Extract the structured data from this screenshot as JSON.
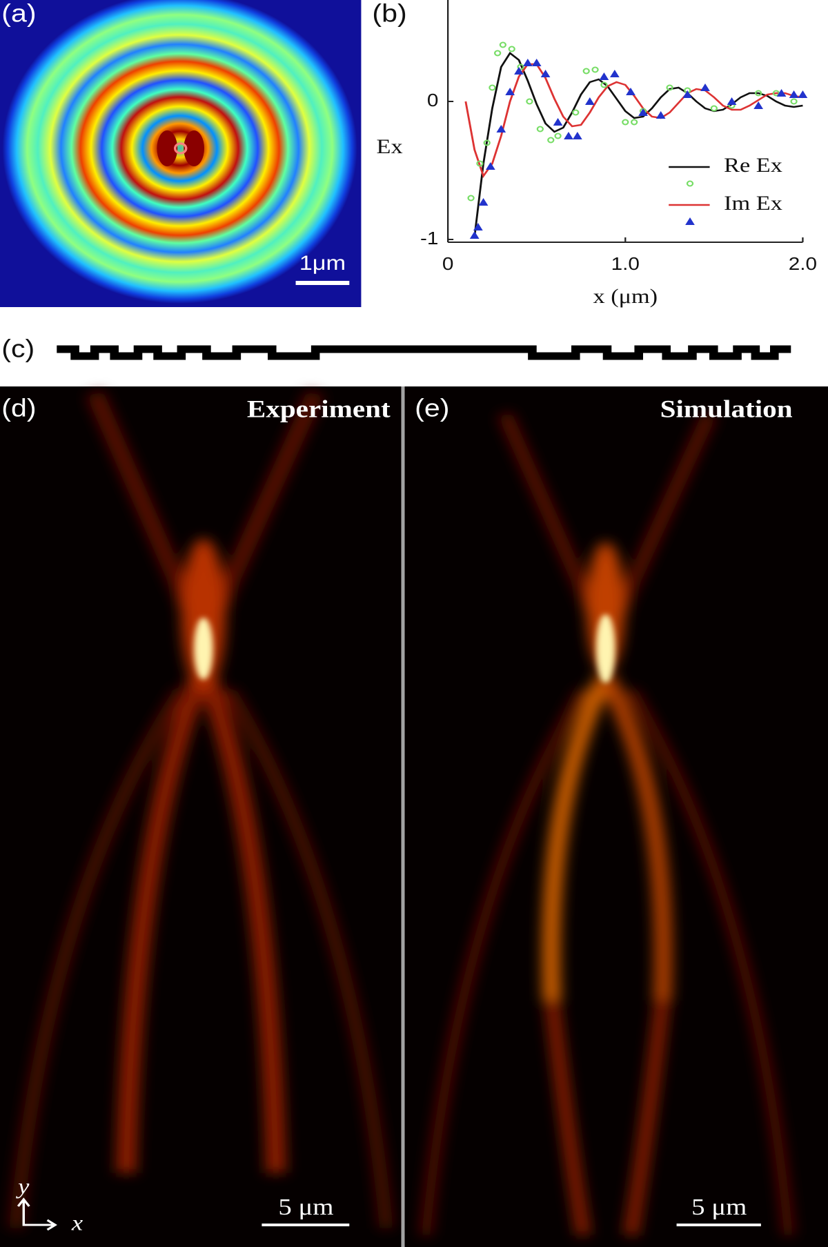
{
  "panels": {
    "a": {
      "label": "(a)",
      "scale_bar": "1μm"
    },
    "b": {
      "label": "(b)"
    },
    "c": {
      "label": "(c)"
    },
    "d": {
      "label": "(d)",
      "title": "Experiment",
      "scale_bar": "5 μm",
      "axis_y": "y",
      "axis_x": "x"
    },
    "e": {
      "label": "(e)",
      "title": "Simulation",
      "scale_bar": "5 μm"
    }
  },
  "chart_data": {
    "type": "line",
    "x_label": "x (μm)",
    "y_label": "Ex",
    "xlim": [
      0,
      2
    ],
    "ylim": [
      -1.02,
      0.735
    ],
    "xticks": [
      0,
      {
        "value": 1,
        "label": "1.0"
      },
      {
        "value": 2,
        "label": "2.0"
      }
    ],
    "yticks": [
      -1,
      0
    ],
    "legend": "right",
    "series": [
      {
        "name": "Re Ex",
        "mode": "line",
        "color": "#111111",
        "x": [
          0.15,
          0.2,
          0.25,
          0.3,
          0.35,
          0.4,
          0.45,
          0.5,
          0.55,
          0.6,
          0.65,
          0.7,
          0.75,
          0.8,
          0.85,
          0.9,
          0.95,
          1.0,
          1.05,
          1.1,
          1.15,
          1.2,
          1.25,
          1.3,
          1.35,
          1.4,
          1.45,
          1.5,
          1.55,
          1.6,
          1.65,
          1.7,
          1.75,
          1.8,
          1.85,
          1.9,
          1.95,
          2.0
        ],
        "values": [
          -0.98,
          -0.45,
          -0.05,
          0.25,
          0.35,
          0.3,
          0.15,
          -0.02,
          -0.16,
          -0.22,
          -0.19,
          -0.08,
          0.05,
          0.14,
          0.16,
          0.11,
          0.02,
          -0.07,
          -0.12,
          -0.11,
          -0.05,
          0.03,
          0.09,
          0.1,
          0.06,
          0.0,
          -0.05,
          -0.07,
          -0.06,
          -0.02,
          0.03,
          0.06,
          0.06,
          0.04,
          0.0,
          -0.03,
          -0.04,
          -0.03
        ]
      },
      {
        "name": "Im Ex",
        "mode": "line",
        "color": "#dd3333",
        "x": [
          0.1,
          0.15,
          0.2,
          0.25,
          0.3,
          0.35,
          0.4,
          0.45,
          0.5,
          0.55,
          0.6,
          0.65,
          0.7,
          0.75,
          0.8,
          0.85,
          0.9,
          0.95,
          1.0,
          1.05,
          1.1,
          1.15,
          1.2,
          1.25,
          1.3,
          1.35,
          1.4,
          1.45,
          1.5,
          1.55,
          1.6,
          1.65,
          1.7,
          1.75,
          1.8,
          1.85,
          1.9,
          1.95,
          2.0
        ],
        "values": [
          0.0,
          -0.35,
          -0.54,
          -0.45,
          -0.25,
          0.0,
          0.18,
          0.27,
          0.27,
          0.17,
          0.02,
          -0.11,
          -0.18,
          -0.17,
          -0.08,
          0.03,
          0.11,
          0.14,
          0.12,
          0.04,
          -0.05,
          -0.11,
          -0.12,
          -0.08,
          -0.01,
          0.06,
          0.09,
          0.08,
          0.03,
          -0.03,
          -0.06,
          -0.06,
          -0.03,
          0.01,
          0.05,
          0.06,
          0.06,
          0.04,
          0.03
        ]
      },
      {
        "mode": "scatter",
        "marker": "circle",
        "color": "#77dd66",
        "x": [
          0.13,
          0.18,
          0.22,
          0.25,
          0.28,
          0.31,
          0.36,
          0.41,
          0.46,
          0.52,
          0.58,
          0.62,
          0.72,
          0.78,
          0.83,
          0.88,
          1.0,
          1.05,
          1.1,
          1.25,
          1.35,
          1.5,
          1.6,
          1.75,
          1.85,
          1.95
        ],
        "values": [
          -0.7,
          -0.45,
          -0.3,
          0.1,
          0.35,
          0.41,
          0.38,
          0.25,
          0.0,
          -0.2,
          -0.28,
          -0.25,
          -0.08,
          0.22,
          0.23,
          0.12,
          -0.15,
          -0.15,
          -0.07,
          0.1,
          0.08,
          -0.05,
          -0.03,
          0.06,
          0.06,
          0.0
        ]
      },
      {
        "mode": "scatter",
        "marker": "triangle",
        "color": "#2233cc",
        "x": [
          0.15,
          0.17,
          0.2,
          0.24,
          0.3,
          0.35,
          0.4,
          0.45,
          0.5,
          0.55,
          0.62,
          0.68,
          0.73,
          0.8,
          0.88,
          0.94,
          1.03,
          1.1,
          1.2,
          1.35,
          1.45,
          1.6,
          1.75,
          1.88,
          1.95,
          2.0
        ],
        "values": [
          -0.97,
          -0.91,
          -0.73,
          -0.47,
          -0.2,
          0.07,
          0.22,
          0.28,
          0.28,
          0.2,
          -0.15,
          -0.25,
          -0.25,
          0.0,
          0.18,
          0.2,
          0.07,
          -0.08,
          -0.1,
          0.05,
          0.1,
          0.0,
          -0.03,
          0.06,
          0.05,
          0.05
        ]
      }
    ]
  }
}
